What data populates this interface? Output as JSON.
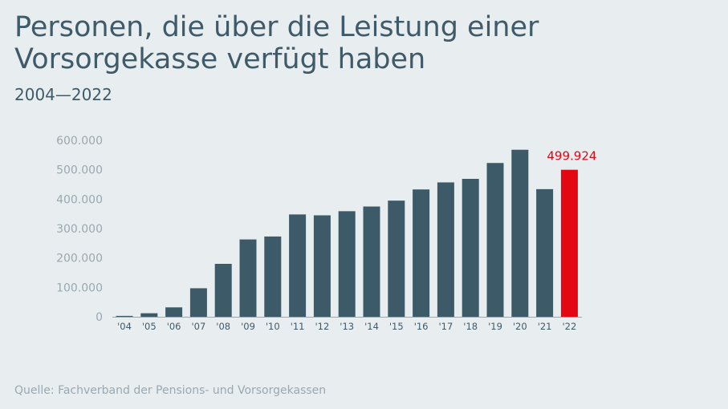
{
  "chart_data": {
    "type": "bar",
    "title": "Personen, die über die Leistung einer Vorsorgekasse verfügt haben",
    "subtitle": "2004—2022",
    "source": "Quelle: Fachverband der Pensions- und Vorsorgekassen",
    "categories": [
      "'04",
      "'05",
      "'06",
      "'07",
      "'08",
      "'09",
      "'10",
      "'11",
      "'12",
      "'13",
      "'14",
      "'15",
      "'16",
      "'17",
      "'18",
      "'19",
      "'20",
      "'21",
      "'22"
    ],
    "values": [
      3000,
      12000,
      32000,
      97000,
      180000,
      263000,
      273000,
      348000,
      345000,
      359000,
      375000,
      395000,
      433000,
      457000,
      469000,
      523000,
      568000,
      434000,
      499924
    ],
    "ylim": [
      0,
      600000
    ],
    "yticks": [
      0,
      100000,
      200000,
      300000,
      400000,
      500000,
      600000
    ],
    "ytick_labels": [
      "0",
      "100.000",
      "200.000",
      "300.000",
      "400.000",
      "500.000",
      "600.000"
    ],
    "data_labels": [
      {
        "category": "'22",
        "text": "499.924"
      }
    ],
    "grid": false,
    "colors": {
      "bar": "#3d5a69",
      "highlight": "#e30613",
      "background": "#e8edf0"
    }
  }
}
